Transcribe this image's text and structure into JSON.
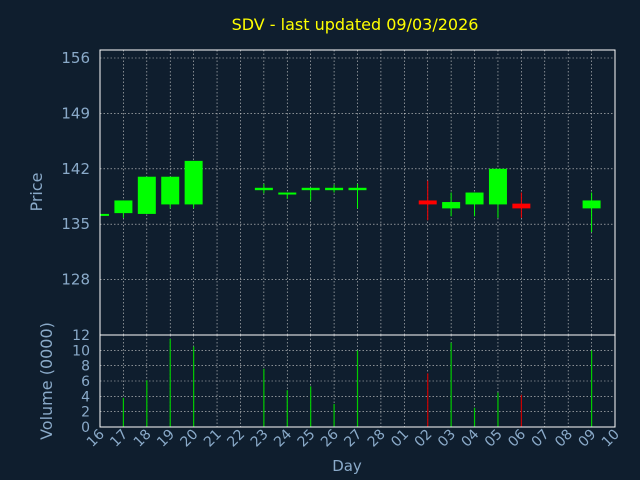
{
  "chart_data": {
    "type": "candlestick",
    "title": "SDV - last updated 09/03/2026",
    "xlabel": "Day",
    "price_panel": {
      "ylabel": "Price",
      "ylim": [
        121,
        156
      ],
      "yticks": [
        156,
        149,
        142,
        135,
        128
      ],
      "grid": true
    },
    "volume_panel": {
      "ylabel": "Volume (0000)",
      "ylim": [
        0,
        12
      ],
      "yticks": [
        12,
        10,
        8,
        6,
        4,
        2,
        0
      ],
      "grid": true
    },
    "categories": [
      "16",
      "17",
      "18",
      "19",
      "20",
      "21",
      "22",
      "23",
      "24",
      "25",
      "26",
      "27",
      "28",
      "01",
      "02",
      "03",
      "04",
      "05",
      "06",
      "07",
      "08",
      "09",
      "10"
    ],
    "candles": [
      {
        "day": "16",
        "open": 136.3,
        "close": 136.3,
        "high": 136.3,
        "low": 136.3,
        "volume": 0,
        "direction": "flat"
      },
      {
        "day": "17",
        "open": 136.4,
        "close": 138.0,
        "high": 138.0,
        "low": 135.8,
        "volume": 3.8,
        "direction": "up"
      },
      {
        "day": "18",
        "open": 136.3,
        "close": 141.0,
        "high": 141.0,
        "low": 136.3,
        "volume": 6.1,
        "direction": "up"
      },
      {
        "day": "19",
        "open": 137.5,
        "close": 141.0,
        "high": 141.0,
        "low": 137.0,
        "volume": 11.5,
        "direction": "up"
      },
      {
        "day": "20",
        "open": 137.5,
        "close": 143.0,
        "high": 143.0,
        "low": 137.0,
        "volume": 10.5,
        "direction": "up"
      },
      {
        "day": "23",
        "open": 139.3,
        "close": 139.6,
        "high": 140.1,
        "low": 138.9,
        "volume": 7.6,
        "direction": "up"
      },
      {
        "day": "24",
        "open": 138.8,
        "close": 139.0,
        "high": 139.0,
        "low": 138.2,
        "volume": 4.8,
        "direction": "up"
      },
      {
        "day": "25",
        "open": 139.3,
        "close": 139.6,
        "high": 139.6,
        "low": 138.0,
        "volume": 5.3,
        "direction": "up"
      },
      {
        "day": "26",
        "open": 139.3,
        "close": 139.6,
        "high": 140.0,
        "low": 139.0,
        "volume": 3.0,
        "direction": "up"
      },
      {
        "day": "27",
        "open": 139.3,
        "close": 139.6,
        "high": 140.1,
        "low": 137.0,
        "volume": 10.0,
        "direction": "up"
      },
      {
        "day": "02",
        "open": 138.0,
        "close": 137.5,
        "high": 140.5,
        "low": 135.5,
        "volume": 7.0,
        "direction": "down"
      },
      {
        "day": "03",
        "open": 137.0,
        "close": 137.8,
        "high": 139.0,
        "low": 136.0,
        "volume": 11.0,
        "direction": "up"
      },
      {
        "day": "04",
        "open": 137.5,
        "close": 139.0,
        "high": 139.0,
        "low": 136.0,
        "volume": 2.5,
        "direction": "up"
      },
      {
        "day": "05",
        "open": 137.5,
        "close": 142.0,
        "high": 142.0,
        "low": 135.8,
        "volume": 4.5,
        "direction": "up"
      },
      {
        "day": "06",
        "open": 137.6,
        "close": 137.0,
        "high": 139.0,
        "low": 135.8,
        "volume": 4.2,
        "direction": "down"
      },
      {
        "day": "09",
        "open": 137.0,
        "close": 138.0,
        "high": 139.0,
        "low": 134.0,
        "volume": 10.0,
        "direction": "up"
      }
    ],
    "colors": {
      "background": "#0f1e2e",
      "plot_background": "#0f1e2e",
      "up": "#00ff00",
      "down": "#ff0000",
      "volume_up": "#00cc00",
      "volume_down": "#cc0000",
      "title": "#ffff00",
      "axis_text": "#8aaac9",
      "frame": "#ffffff"
    }
  }
}
